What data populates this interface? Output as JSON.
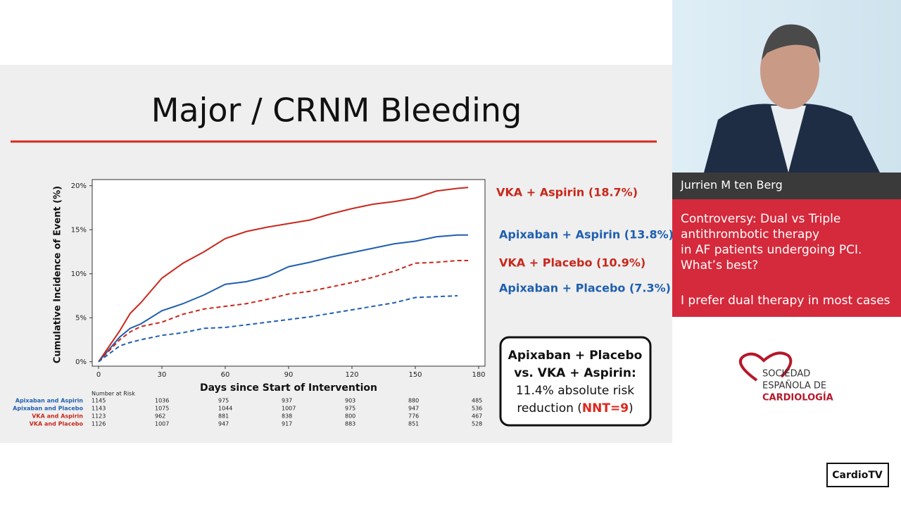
{
  "slide_title": "Major / CRNM Bleeding",
  "chart_data": {
    "type": "line",
    "x_label": "Days since Start of Intervention",
    "y_label": "Cumulative Incidence of Event (%)",
    "x": [
      0,
      10,
      15,
      20,
      30,
      40,
      50,
      60,
      70,
      80,
      90,
      100,
      110,
      120,
      130,
      140,
      150,
      160,
      170,
      175
    ],
    "xlim": [
      -3,
      183
    ],
    "xticks": [
      0,
      30,
      60,
      90,
      120,
      150,
      180
    ],
    "ylim": [
      -0.5,
      20.7
    ],
    "yticks": [
      {
        "value": 0,
        "label": "0%"
      },
      {
        "value": 5,
        "label": "5%"
      },
      {
        "value": 10,
        "label": "10%"
      },
      {
        "value": 15,
        "label": "15%"
      },
      {
        "value": 20,
        "label": "20%"
      }
    ],
    "series": [
      {
        "name": "VKA + Aspirin (18.7%)",
        "color": "#c8281c",
        "style": "solid",
        "values": [
          0,
          3.5,
          5.5,
          6.7,
          9.5,
          11.2,
          12.5,
          14.0,
          14.8,
          15.3,
          15.7,
          16.1,
          16.8,
          17.4,
          17.9,
          18.2,
          18.6,
          19.4,
          19.7,
          19.8
        ]
      },
      {
        "name": "Apixaban + Aspirin (13.8%)",
        "color": "#1f5fb0",
        "style": "solid",
        "values": [
          0,
          2.8,
          3.8,
          4.3,
          5.8,
          6.6,
          7.6,
          8.8,
          9.1,
          9.7,
          10.8,
          11.3,
          11.9,
          12.4,
          12.9,
          13.4,
          13.7,
          14.2,
          14.4,
          14.4
        ]
      },
      {
        "name": "VKA + Placebo (10.9%)",
        "color": "#c8281c",
        "style": "dashed",
        "values": [
          0,
          2.5,
          3.4,
          4.0,
          4.5,
          5.4,
          6.0,
          6.3,
          6.6,
          7.1,
          7.7,
          8.0,
          8.5,
          9.0,
          9.6,
          10.3,
          11.2,
          11.3,
          11.5,
          11.5
        ]
      },
      {
        "name": "Apixaban + Placebo (7.3%)",
        "color": "#1f5fb0",
        "style": "dashed",
        "values": [
          0,
          1.8,
          2.2,
          2.5,
          3.0,
          3.3,
          3.8,
          3.9,
          4.2,
          4.5,
          4.8,
          5.1,
          5.5,
          5.9,
          6.3,
          6.7,
          7.3,
          7.4,
          7.5,
          null
        ]
      }
    ]
  },
  "risk_table": {
    "title": "Number at Risk",
    "rows": [
      {
        "label": "Apixaban and Aspirin",
        "values": [
          "1145",
          "1036",
          "975",
          "937",
          "903",
          "880",
          "485"
        ]
      },
      {
        "label": "Apixaban and Placebo",
        "values": [
          "1143",
          "1075",
          "1044",
          "1007",
          "975",
          "947",
          "536"
        ]
      },
      {
        "label": "VKA and Aspirin",
        "values": [
          "1123",
          "962",
          "881",
          "838",
          "800",
          "776",
          "467"
        ]
      },
      {
        "label": "VKA and Placebo",
        "values": [
          "1126",
          "1007",
          "947",
          "917",
          "883",
          "851",
          "528"
        ]
      }
    ]
  },
  "callout": {
    "line1": "Apixaban + Placebo",
    "line2": "vs. VKA + Aspirin:",
    "line3": "11.4% absolute risk",
    "line4_start": "reduction (",
    "line4_highlight": "NNT=9",
    "line4_end": ")"
  },
  "speaker": "Jurrien M ten Berg",
  "topic": {
    "lines": [
      "Controversy: Dual vs Triple",
      "antithrombotic therapy",
      "in AF patients undergoing PCI.",
      "What’s best?"
    ],
    "subtitle": "I prefer dual therapy in most cases"
  },
  "logo": {
    "line1": "SOCIEDAD",
    "line2": "ESPAÑOLA DE",
    "line3": "CARDIOLOGÍA"
  },
  "channel": "CardioTV"
}
